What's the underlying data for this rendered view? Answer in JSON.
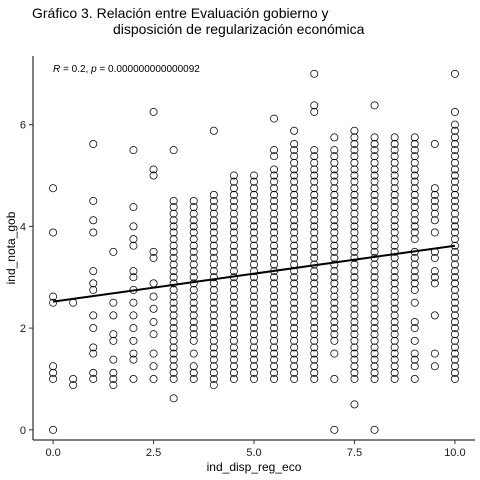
{
  "chart_data": {
    "type": "scatter",
    "title_line1": "Gráfico 3. Relación entre Evaluación gobierno y",
    "title_line2": "disposición de regularización económica",
    "xlabel": "ind_disp_reg_eco",
    "ylabel": "ind_nota_gob",
    "xlim": [
      -0.5,
      10.5
    ],
    "ylim": [
      -0.2,
      7.35
    ],
    "x_ticks": [
      0,
      2.5,
      5,
      7.5,
      10
    ],
    "x_tick_labels": [
      "0.0",
      "2.5",
      "5.0",
      "7.5",
      "10.0"
    ],
    "y_ticks": [
      0,
      2,
      4,
      6
    ],
    "y_tick_labels": [
      "0",
      "2",
      "4",
      "6"
    ],
    "annotation": {
      "r_label": "R",
      "r_text": " = 0.2, ",
      "p_label": "p",
      "p_text": " = 0.000000000000092"
    },
    "grid": false,
    "regression_line": {
      "x": [
        0,
        10
      ],
      "y": [
        2.52,
        3.62
      ]
    },
    "marker": {
      "shape": "open-circle",
      "stroke": "#000000",
      "fill": "none"
    },
    "line_color": "#000000",
    "series": [
      {
        "x": 0,
        "y": [
          0,
          1,
          1.12,
          1.25,
          2.5,
          2.62,
          3.88,
          4.75
        ]
      },
      {
        "x": 0.5,
        "y": [
          2.5,
          1,
          0.88
        ]
      },
      {
        "x": 1,
        "y": [
          5.62,
          4.5,
          4.12,
          3.88,
          3.12,
          2.88,
          2.75,
          2.25,
          2,
          1.62,
          1.5,
          1.12,
          1
        ]
      },
      {
        "x": 1.5,
        "y": [
          3.5,
          2.5,
          2.25,
          1.88,
          1.75,
          1.38,
          1.12,
          1,
          0.88
        ]
      },
      {
        "x": 2,
        "y": [
          5.5,
          4.38,
          4,
          3.75,
          3.62,
          3.12,
          3,
          2.75,
          2.5,
          2.25,
          2,
          1.75,
          1.5,
          1.38,
          1
        ]
      },
      {
        "x": 2.5,
        "y": [
          6.25,
          5.12,
          5,
          3.5,
          3.38,
          2.88,
          2.62,
          2.38,
          2.12,
          1.88,
          1.5,
          1.25,
          1
        ]
      },
      {
        "x": 3,
        "y": [
          5.5,
          4.5,
          4.38,
          4.25,
          4.12,
          4,
          3.88,
          3.75,
          3.62,
          3.5,
          3.38,
          3.25,
          3.12,
          3,
          2.88,
          2.75,
          2.62,
          2.5,
          2.38,
          2.25,
          2.12,
          2,
          1.88,
          1.75,
          1.62,
          1.5,
          1.38,
          1.25,
          1.12,
          1,
          0.62
        ]
      },
      {
        "x": 3.5,
        "y": [
          4.5,
          4.38,
          4.25,
          4.12,
          4,
          3.88,
          3.75,
          3.62,
          3.5,
          3.38,
          3.25,
          3.12,
          3,
          2.88,
          2.75,
          2.62,
          2.5,
          2.38,
          2.25,
          2.12,
          2,
          1.88,
          1.75,
          1.5,
          1.25,
          1.12,
          1
        ]
      },
      {
        "x": 4,
        "y": [
          5.88,
          4.62,
          4.5,
          4.38,
          4.25,
          4.12,
          4,
          3.88,
          3.75,
          3.62,
          3.5,
          3.38,
          3.25,
          3.12,
          3,
          2.88,
          2.75,
          2.62,
          2.5,
          2.38,
          2.25,
          2.12,
          2,
          1.88,
          1.75,
          1.62,
          1.5,
          1.38,
          1.25,
          1.12,
          1,
          0.88
        ]
      },
      {
        "x": 4.5,
        "y": [
          5,
          4.88,
          4.75,
          4.62,
          4.5,
          4.38,
          4.25,
          4.12,
          4,
          3.88,
          3.75,
          3.62,
          3.5,
          3.38,
          3.25,
          3.12,
          3,
          2.88,
          2.75,
          2.62,
          2.5,
          2.38,
          2.25,
          2.12,
          2,
          1.88,
          1.75,
          1.62,
          1.5,
          1.38,
          1.25,
          1.12,
          1
        ]
      },
      {
        "x": 5,
        "y": [
          5,
          4.88,
          4.75,
          4.62,
          4.5,
          4.38,
          4.25,
          4.12,
          4,
          3.88,
          3.75,
          3.62,
          3.5,
          3.38,
          3.25,
          3.12,
          3,
          2.88,
          2.75,
          2.62,
          2.5,
          2.38,
          2.25,
          2.12,
          2,
          1.88,
          1.75,
          1.62,
          1.5,
          1.38,
          1.25,
          1.12,
          1
        ]
      },
      {
        "x": 5.5,
        "y": [
          6.12,
          5.5,
          5.38,
          5.12,
          5,
          4.88,
          4.75,
          4.62,
          4.5,
          4.38,
          4.25,
          4.12,
          4,
          3.88,
          3.75,
          3.62,
          3.5,
          3.38,
          3.25,
          3.12,
          3,
          2.88,
          2.75,
          2.62,
          2.5,
          2.38,
          2.25,
          2.12,
          2,
          1.88,
          1.75,
          1.62,
          1.5,
          1.38,
          1.25,
          1.12,
          1
        ]
      },
      {
        "x": 6,
        "y": [
          5.88,
          5.62,
          5.5,
          5.38,
          5.25,
          5.12,
          5,
          4.88,
          4.75,
          4.62,
          4.5,
          4.38,
          4.25,
          4.12,
          4,
          3.88,
          3.75,
          3.62,
          3.5,
          3.38,
          3.25,
          3.12,
          3,
          2.88,
          2.75,
          2.62,
          2.5,
          2.38,
          2.25,
          2.12,
          2,
          1.88,
          1.75,
          1.62,
          1.5,
          1.38,
          1.25,
          1.12,
          1
        ]
      },
      {
        "x": 6.5,
        "y": [
          7,
          6.38,
          6.25,
          5.5,
          5.38,
          5.25,
          5.12,
          5,
          4.88,
          4.75,
          4.62,
          4.5,
          4.38,
          4.25,
          4.12,
          4,
          3.88,
          3.75,
          3.62,
          3.5,
          3.38,
          3.25,
          3.12,
          3,
          2.88,
          2.75,
          2.62,
          2.5,
          2.38,
          2.25,
          2.12,
          2,
          1.88,
          1.75,
          1.62,
          1.5,
          1.38,
          1.25,
          1.12,
          1
        ]
      },
      {
        "x": 7,
        "y": [
          5.75,
          5.5,
          5.38,
          5.25,
          5.12,
          5,
          4.88,
          4.75,
          4.62,
          4.5,
          4.38,
          4.25,
          4.12,
          4,
          3.88,
          3.75,
          3.62,
          3.5,
          3.38,
          3.25,
          3.12,
          3,
          2.88,
          2.75,
          2.62,
          2.5,
          2.38,
          2.25,
          2.12,
          2,
          1.88,
          1.75,
          1.5,
          1,
          0
        ]
      },
      {
        "x": 7.5,
        "y": [
          5.88,
          5.75,
          5.62,
          5.5,
          5.38,
          5.25,
          5.12,
          5,
          4.88,
          4.75,
          4.62,
          4.5,
          4.38,
          4.25,
          4.12,
          4,
          3.88,
          3.75,
          3.62,
          3.5,
          3.38,
          3.25,
          3.12,
          3,
          2.88,
          2.75,
          2.62,
          2.5,
          2.38,
          2.25,
          2.12,
          2,
          1.88,
          1.75,
          1.62,
          1.5,
          1.38,
          1.25,
          1.12,
          1,
          0.5
        ]
      },
      {
        "x": 8,
        "y": [
          6.38,
          5.75,
          5.62,
          5.5,
          5.38,
          5.25,
          5.12,
          5,
          4.88,
          4.75,
          4.62,
          4.5,
          4.38,
          4.25,
          4.12,
          4,
          3.88,
          3.75,
          3.62,
          3.5,
          3.38,
          3.25,
          3.12,
          3,
          2.88,
          2.75,
          2.62,
          2.5,
          2.38,
          2.25,
          2.12,
          2,
          1.88,
          1.75,
          1.62,
          1.5,
          1.38,
          1.25,
          1.12,
          1,
          0
        ]
      },
      {
        "x": 8.5,
        "y": [
          5.75,
          5.62,
          5.5,
          5.38,
          5.25,
          5.12,
          5,
          4.88,
          4.75,
          4.62,
          4.5,
          4.38,
          4.25,
          4.12,
          4,
          3.88,
          3.75,
          3.62,
          3.5,
          3.38,
          3.25,
          3.12,
          3,
          2.88,
          2.75,
          2.62,
          2.5,
          2.38,
          2.25,
          2.12,
          2,
          1.88,
          1.75,
          1.62,
          1.5,
          1.38,
          1.25,
          1.12,
          1
        ]
      },
      {
        "x": 9,
        "y": [
          5.75,
          5.62,
          5.5,
          5.38,
          5.25,
          5.12,
          5,
          4.88,
          4.75,
          4.62,
          4.5,
          4.38,
          4.25,
          4.12,
          4,
          3.88,
          3.75,
          3.5,
          3.38,
          3.25,
          3.12,
          3,
          2.88,
          2.75,
          2.5,
          2.12,
          2,
          1.75,
          1.5,
          1.38,
          1.25,
          1
        ]
      },
      {
        "x": 9.5,
        "y": [
          5.62,
          4.75,
          4.62,
          4.5,
          4.38,
          4.25,
          4.12,
          3.88,
          3.5,
          3.38,
          3.12,
          3,
          2.88,
          2.25,
          1.5,
          1.25
        ]
      },
      {
        "x": 10,
        "y": [
          7,
          6.25,
          6,
          5.88,
          5.75,
          5.62,
          5.5,
          5.38,
          5.25,
          5.12,
          5,
          4.88,
          4.75,
          4.62,
          4.5,
          4.38,
          4.25,
          4.12,
          4,
          3.88,
          3.75,
          3.62,
          3.5,
          3.38,
          3.25,
          3.12,
          3,
          2.88,
          2.75,
          2.62,
          2.5,
          2.38,
          2.25,
          2.12,
          2,
          1.88,
          1.75,
          1.62,
          1.5,
          1.38,
          1.25,
          1.12,
          1
        ]
      }
    ]
  }
}
